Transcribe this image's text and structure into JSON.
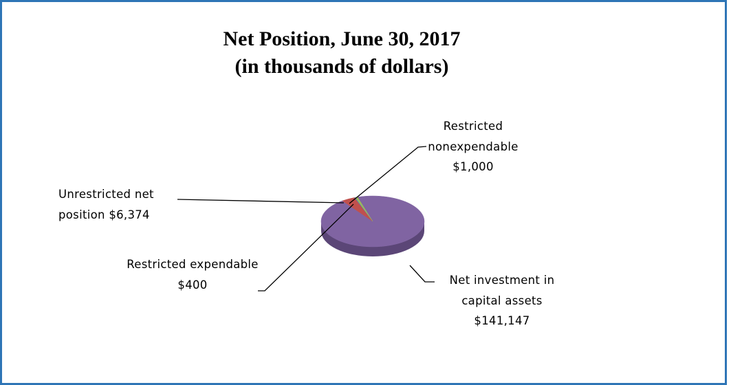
{
  "chart_data": {
    "type": "pie",
    "title": "Net Position, June 30, 2017",
    "subtitle": "(in thousands of dollars)",
    "categories": [
      "Net investment in capital assets",
      "Unrestricted net position",
      "Restricted expendable",
      "Restricted nonexpendable"
    ],
    "values": [
      141147,
      6374,
      400,
      1000
    ],
    "value_labels": [
      "$141,147",
      "$6,374",
      "$400",
      "$1,000"
    ],
    "colors": [
      "#8064a2",
      "#c0504d",
      "#4f81bd",
      "#9bbb59"
    ]
  }
}
